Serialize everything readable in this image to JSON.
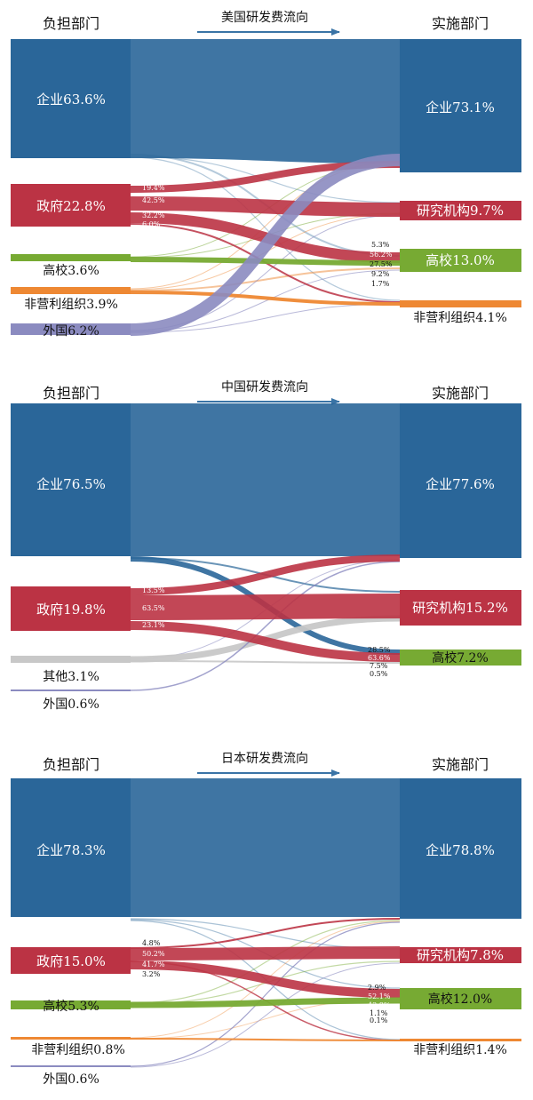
{
  "headers": {
    "left": "负担部门",
    "right": "实施部门"
  },
  "colors": {
    "enterprise": "#2a6699",
    "government": "#bb3344",
    "university": "#77aa33",
    "nonprofit": "#ee8833",
    "foreign": "#8b8bc0",
    "other": "#c8c8c8",
    "arrow": "#3a74a6"
  },
  "panels": [
    {
      "title": "美国研发费流向",
      "sources": [
        {
          "label": "企业63.6%",
          "value": 63.6,
          "color_key": "enterprise"
        },
        {
          "label": "政府22.8%",
          "value": 22.8,
          "color_key": "government"
        },
        {
          "label": "高校3.6%",
          "value": 3.6,
          "color_key": "university"
        },
        {
          "label": "非营利组织3.9%",
          "value": 3.9,
          "color_key": "nonprofit"
        },
        {
          "label": "外国6.2%",
          "value": 6.2,
          "color_key": "foreign"
        }
      ],
      "targets": [
        {
          "label": "企业73.1%",
          "value": 73.1,
          "color_key": "enterprise"
        },
        {
          "label": "研究机构9.7%",
          "value": 9.7,
          "color_key": "government"
        },
        {
          "label": "高校13.0%",
          "value": 13.0,
          "color_key": "university"
        },
        {
          "label": "非营利组织4.1%",
          "value": 4.1,
          "color_key": "nonprofit"
        }
      ],
      "source_pcts": [
        "19.4%",
        "42.5%",
        "32.2%",
        "6.0%"
      ],
      "target_pcts": [
        "5.3%",
        "56.2%",
        "27.5%",
        "9.2%",
        "1.7%"
      ]
    },
    {
      "title": "中国研发费流向",
      "sources": [
        {
          "label": "企业76.5%",
          "value": 76.5,
          "color_key": "enterprise"
        },
        {
          "label": "政府19.8%",
          "value": 19.8,
          "color_key": "government"
        },
        {
          "label": "其他3.1%",
          "value": 3.1,
          "color_key": "other"
        },
        {
          "label": "外国0.6%",
          "value": 0.6,
          "color_key": "foreign"
        }
      ],
      "targets": [
        {
          "label": "企业77.6%",
          "value": 77.6,
          "color_key": "enterprise"
        },
        {
          "label": "研究机构15.2%",
          "value": 15.2,
          "color_key": "government"
        },
        {
          "label": "高校7.2%",
          "value": 7.2,
          "color_key": "university"
        }
      ],
      "source_pcts": [
        "13.5%",
        "63.5%",
        "23.1%"
      ],
      "target_pcts": [
        "28.5%",
        "63.6%",
        "7.5%",
        "0.5%"
      ]
    },
    {
      "title": "日本研发费流向",
      "sources": [
        {
          "label": "企业78.3%",
          "value": 78.3,
          "color_key": "enterprise"
        },
        {
          "label": "政府15.0%",
          "value": 15.0,
          "color_key": "government"
        },
        {
          "label": "高校5.3%",
          "value": 5.3,
          "color_key": "university"
        },
        {
          "label": "非营利组织0.8%",
          "value": 0.8,
          "color_key": "nonprofit"
        },
        {
          "label": "外国0.6%",
          "value": 0.6,
          "color_key": "foreign"
        }
      ],
      "targets": [
        {
          "label": "企业78.8%",
          "value": 78.8,
          "color_key": "enterprise"
        },
        {
          "label": "研究机构7.8%",
          "value": 7.8,
          "color_key": "government"
        },
        {
          "label": "高校12.0%",
          "value": 12.0,
          "color_key": "university"
        },
        {
          "label": "非营利组织1.4%",
          "value": 1.4,
          "color_key": "nonprofit"
        }
      ],
      "source_pcts": [
        "4.8%",
        "50.2%",
        "41.7%",
        "3.2%"
      ],
      "target_pcts": [
        "2.9%",
        "52.1%",
        "43.8%",
        "1.1%",
        "0.1%"
      ]
    }
  ]
}
